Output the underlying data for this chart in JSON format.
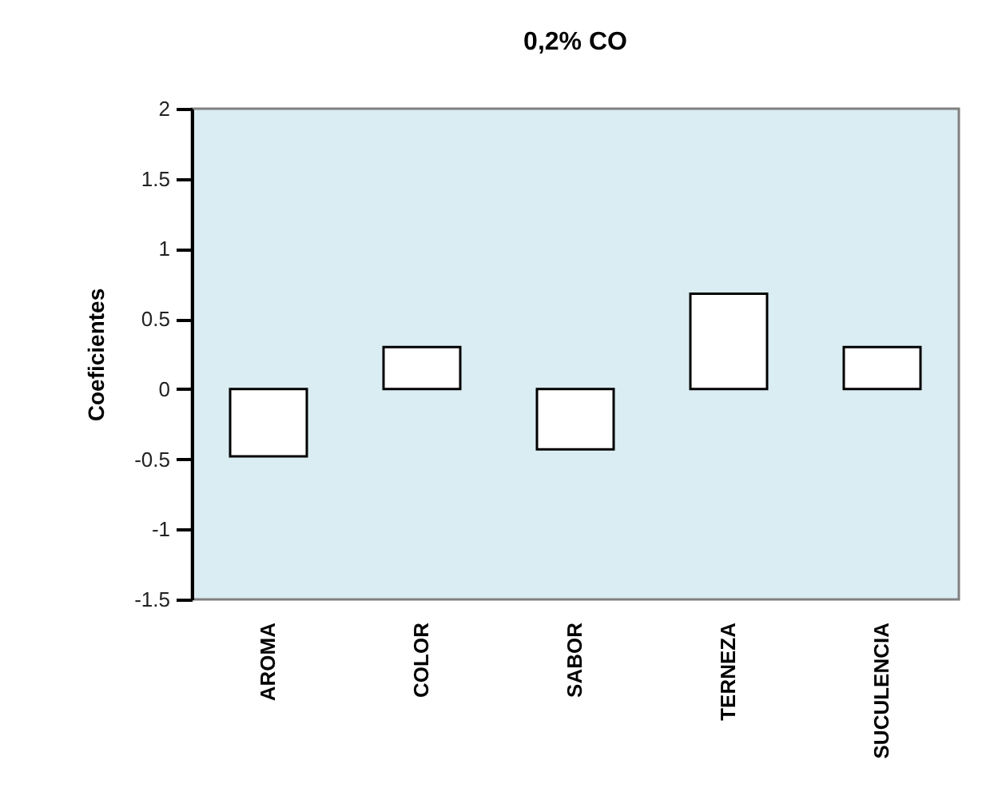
{
  "chart_data": {
    "type": "bar",
    "title": "0,2% CO",
    "ylabel": "Coeficientes",
    "categories": [
      "AROMA",
      "COLOR",
      "SABOR",
      "TERNEZA",
      "SUCULENCIA"
    ],
    "values": [
      -0.48,
      0.3,
      -0.43,
      0.68,
      0.3
    ],
    "color": "#ffffff",
    "ylim": [
      -1.5,
      2
    ],
    "yticks": [
      -1.5,
      -1,
      -0.5,
      0,
      0.5,
      1,
      1.5,
      2
    ],
    "grid": false
  }
}
